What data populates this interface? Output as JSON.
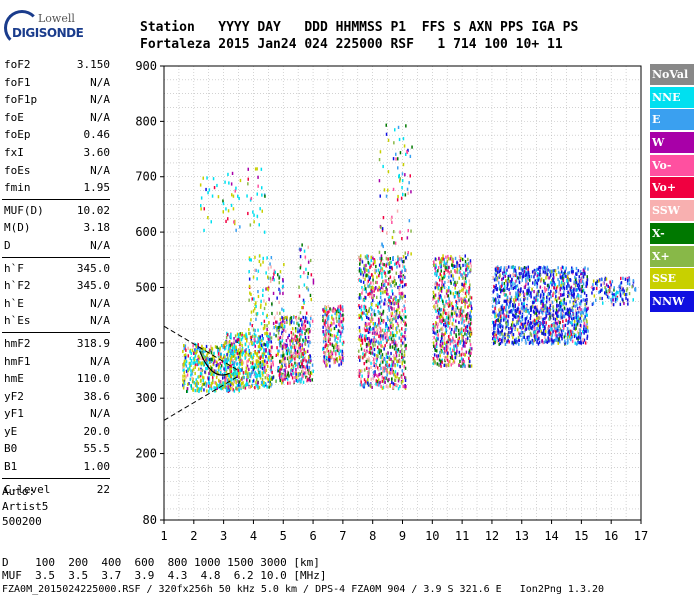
{
  "logo": {
    "line1": "Lowell",
    "line2": "DIGISONDE"
  },
  "header": {
    "row1": "Station   YYYY DAY   DDD HHMMSS P1  FFS S AXN PPS IGA PS",
    "row2": "Fortaleza 2015 Jan24 024 225000 RSF   1 714 100 10+ 11"
  },
  "params": [
    {
      "name": "foF2",
      "value": "3.150"
    },
    {
      "name": "foF1",
      "value": "N/A"
    },
    {
      "name": "foF1p",
      "value": "N/A"
    },
    {
      "name": "foE",
      "value": "N/A"
    },
    {
      "name": "foEp",
      "value": "0.46"
    },
    {
      "name": "fxI",
      "value": "3.60"
    },
    {
      "name": "foEs",
      "value": "N/A"
    },
    {
      "name": "fmin",
      "value": "1.95"
    },
    {
      "name": "MUF(D)",
      "value": "10.02"
    },
    {
      "name": "M(D)",
      "value": "3.18"
    },
    {
      "name": "D",
      "value": "N/A"
    },
    {
      "name": "h`F",
      "value": "345.0"
    },
    {
      "name": "h`F2",
      "value": "345.0"
    },
    {
      "name": "h`E",
      "value": "N/A"
    },
    {
      "name": "h`Es",
      "value": "N/A"
    },
    {
      "name": "hmF2",
      "value": "318.9"
    },
    {
      "name": "hmF1",
      "value": "N/A"
    },
    {
      "name": "hmE",
      "value": "110.0"
    },
    {
      "name": "yF2",
      "value": "38.6"
    },
    {
      "name": "yF1",
      "value": "N/A"
    },
    {
      "name": "yE",
      "value": "20.0"
    },
    {
      "name": "B0",
      "value": "55.5"
    },
    {
      "name": "B1",
      "value": "1.00"
    },
    {
      "name": "C-level",
      "value": "22"
    }
  ],
  "auto": {
    "l1": "Auto:",
    "l2": "Artist5",
    "l3": "500200"
  },
  "legend": [
    {
      "label": "NoVal",
      "color": "#888888"
    },
    {
      "label": "NNE",
      "color": "#00e0f0"
    },
    {
      "label": "E",
      "color": "#3aa0f0"
    },
    {
      "label": "W",
      "color": "#a800a8"
    },
    {
      "label": "Vo-",
      "color": "#ff50a0"
    },
    {
      "label": "Vo+",
      "color": "#f00040"
    },
    {
      "label": "SSW",
      "color": "#f8b0b0"
    },
    {
      "label": "X-",
      "color": "#007800"
    },
    {
      "label": "X+",
      "color": "#88b848"
    },
    {
      "label": "SSE",
      "color": "#c8d000"
    },
    {
      "label": "NNW",
      "color": "#1010e0"
    }
  ],
  "bottom": {
    "row1": "D    100  200  400  600  800 1000 1500 3000 [km]",
    "row2": "MUF  3.5  3.5  3.7  3.9  4.3  4.8  6.2 10.0 [MHz]"
  },
  "footer": "FZA0M_2015024225000.RSF / 320fx256h 50 kHz 5.0 km / DPS-4 FZA0M 904 / 3.9 S 321.6 E   Ion2Png 1.3.20",
  "chart_data": {
    "type": "scatter",
    "title": "",
    "xlabel": "",
    "ylabel": "",
    "xlim": [
      1,
      17
    ],
    "ylim": [
      80,
      900
    ],
    "x_ticks": [
      1,
      2,
      3,
      4,
      5,
      6,
      7,
      8,
      9,
      10,
      11,
      12,
      13,
      14,
      15,
      16,
      17
    ],
    "y_ticks": [
      80,
      200,
      300,
      400,
      500,
      600,
      700,
      800,
      900
    ],
    "grid": true,
    "series": [
      {
        "name": "NNW",
        "values_note": "",
        "clusters": [
          [
            9.05,
            450
          ],
          [
            12.7,
            480
          ],
          [
            13.6,
            470
          ],
          [
            14.4,
            480
          ],
          [
            8.3,
            470
          ],
          [
            10.3,
            430
          ]
        ]
      },
      {
        "name": "E",
        "clusters": [
          [
            8.0,
            420
          ],
          [
            10.9,
            460
          ],
          [
            13.0,
            490
          ],
          [
            14.0,
            480
          ],
          [
            2.8,
            360
          ]
        ]
      },
      {
        "name": "SSE",
        "clusters": [
          [
            2.3,
            340
          ],
          [
            3.6,
            360
          ],
          [
            10.7,
            470
          ],
          [
            11.0,
            500
          ],
          [
            8.7,
            410
          ]
        ]
      },
      {
        "name": "W",
        "clusters": [
          [
            2.0,
            375
          ],
          [
            7.0,
            420
          ],
          [
            14.8,
            470
          ],
          [
            8.8,
            500
          ]
        ]
      },
      {
        "name": "SSW",
        "clusters": [
          [
            2.2,
            330
          ],
          [
            5.3,
            340
          ],
          [
            7.8,
            340
          ],
          [
            10.8,
            360
          ]
        ]
      }
    ],
    "trace_lines": [
      {
        "from": [
          1,
          430
        ],
        "to": [
          3.5,
          350
        ]
      },
      {
        "from": [
          1,
          260
        ],
        "to": [
          3.5,
          340
        ]
      }
    ]
  }
}
